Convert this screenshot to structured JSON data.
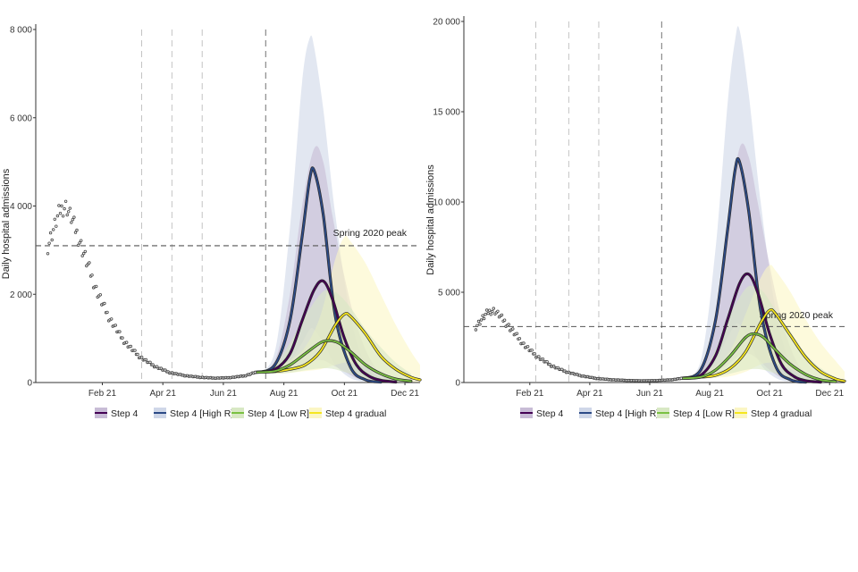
{
  "chart_data": [
    {
      "type": "line",
      "ylabel": "Daily hospital admissions",
      "ylim": [
        0,
        8000
      ],
      "yticks": [
        0,
        2000,
        4000,
        6000,
        8000
      ],
      "ytick_labels": [
        "0",
        "2 000",
        "4 000",
        "6 000",
        "8 000"
      ],
      "xlim_months": [
        11.6,
        24.3
      ],
      "xticks": [
        13.8,
        15.8,
        17.8,
        19.8,
        21.8,
        23.8
      ],
      "xtick_labels": [
        "Feb 21",
        "Apr 21",
        "Jun 21",
        "Aug 21",
        "Oct 21",
        "Dec 21"
      ],
      "vlines_months": [
        15.1,
        16.1,
        17.1,
        19.2
      ],
      "reference": {
        "label": "Spring 2020 peak",
        "value": 3100
      },
      "observed": {
        "name": "Observed",
        "x": [
          12.0,
          12.2,
          12.4,
          12.6,
          12.8,
          13.0,
          13.3,
          13.6,
          14.0,
          14.5,
          15.0,
          15.5,
          16.0,
          16.5,
          17.0,
          17.5,
          18.0,
          18.5,
          18.85
        ],
        "y": [
          3100,
          3500,
          3900,
          4000,
          3700,
          3300,
          2700,
          2100,
          1500,
          950,
          600,
          380,
          230,
          160,
          120,
          100,
          110,
          150,
          230
        ]
      },
      "series": [
        {
          "name": "Step 4",
          "color": "#440154",
          "x": [
            18.85,
            19.5,
            20.0,
            20.4,
            20.8,
            21.1,
            21.4,
            21.8,
            22.2,
            22.6,
            23.0,
            23.5
          ],
          "y": [
            230,
            300,
            650,
            1400,
            2100,
            2300,
            1900,
            1000,
            400,
            150,
            50,
            10
          ],
          "lower": [
            230,
            250,
            300,
            400,
            500,
            500,
            400,
            250,
            100,
            40,
            10,
            0
          ],
          "upper": [
            230,
            500,
            2000,
            4000,
            5300,
            5000,
            3800,
            2400,
            1300,
            600,
            200,
            50
          ]
        },
        {
          "name": "Step 4 [High R]",
          "color": "#2c4a86",
          "x": [
            18.85,
            19.5,
            20.0,
            20.4,
            20.65,
            20.8,
            21.1,
            21.5,
            22.0,
            22.5,
            23.0
          ],
          "y": [
            230,
            400,
            1400,
            3300,
            4600,
            4800,
            3800,
            1500,
            350,
            60,
            10
          ],
          "lower": [
            230,
            300,
            500,
            900,
            1200,
            1200,
            900,
            400,
            100,
            20,
            0
          ],
          "upper": [
            230,
            700,
            3500,
            6800,
            7800,
            7600,
            6200,
            3800,
            1500,
            400,
            100
          ]
        },
        {
          "name": "Step 4 [Low R]",
          "color": "#7ac142",
          "x": [
            18.85,
            19.5,
            20.0,
            20.5,
            21.0,
            21.3,
            21.6,
            22.0,
            22.5,
            23.0,
            23.5,
            24.0
          ],
          "y": [
            230,
            260,
            400,
            650,
            900,
            950,
            900,
            700,
            400,
            200,
            80,
            30
          ],
          "lower": [
            230,
            200,
            220,
            280,
            320,
            320,
            280,
            200,
            100,
            40,
            10,
            0
          ],
          "upper": [
            230,
            400,
            900,
            1500,
            2000,
            2100,
            2000,
            1700,
            1200,
            800,
            450,
            200
          ]
        },
        {
          "name": "Step 4 gradual",
          "color": "#f5e61f",
          "x": [
            18.85,
            19.5,
            20.0,
            20.5,
            21.0,
            21.5,
            21.8,
            22.0,
            22.5,
            23.0,
            23.5,
            24.0,
            24.3
          ],
          "y": [
            230,
            250,
            300,
            400,
            700,
            1300,
            1550,
            1500,
            1100,
            600,
            300,
            120,
            60
          ],
          "lower": [
            230,
            200,
            220,
            260,
            300,
            400,
            450,
            450,
            350,
            200,
            80,
            20,
            5
          ],
          "upper": [
            230,
            350,
            500,
            800,
            1500,
            2800,
            3300,
            3200,
            2700,
            2000,
            1300,
            700,
            400
          ]
        }
      ],
      "legend": "bottom"
    },
    {
      "type": "line",
      "ylabel": "Daily hospital admissions",
      "ylim": [
        0,
        20000
      ],
      "yticks": [
        0,
        5000,
        10000,
        15000,
        20000
      ],
      "ytick_labels": [
        "0",
        "5 000",
        "10 000",
        "15 000",
        "20 000"
      ],
      "xlim_months": [
        11.6,
        24.3
      ],
      "xticks": [
        13.8,
        15.8,
        17.8,
        19.8,
        21.8,
        23.8
      ],
      "xtick_labels": [
        "Feb 21",
        "Apr 21",
        "Jun 21",
        "Aug 21",
        "Oct 21",
        "Dec 21"
      ],
      "vlines_months": [
        14.0,
        15.1,
        16.1,
        18.2
      ],
      "reference": {
        "label": "Spring 2020 peak",
        "value": 3100
      },
      "observed": {
        "name": "Observed",
        "x": [
          12.0,
          12.2,
          12.4,
          12.6,
          12.8,
          13.0,
          13.3,
          13.6,
          14.0,
          14.5,
          15.0,
          15.5,
          16.0,
          16.5,
          17.0,
          17.5,
          18.0,
          18.5,
          18.85
        ],
        "y": [
          3100,
          3500,
          3900,
          4000,
          3700,
          3300,
          2700,
          2100,
          1500,
          950,
          600,
          380,
          230,
          160,
          120,
          100,
          110,
          150,
          230
        ]
      },
      "series": [
        {
          "name": "Step 4",
          "color": "#440154",
          "x": [
            18.85,
            19.5,
            20.0,
            20.4,
            20.8,
            21.1,
            21.4,
            21.8,
            22.2,
            22.6,
            23.0,
            23.5
          ],
          "y": [
            230,
            400,
            1500,
            3500,
            5500,
            6000,
            5000,
            2700,
            1000,
            350,
            100,
            20
          ],
          "lower": [
            230,
            300,
            600,
            1000,
            1500,
            1600,
            1300,
            700,
            250,
            80,
            20,
            0
          ],
          "upper": [
            230,
            700,
            4000,
            9000,
            13000,
            12500,
            10000,
            6500,
            3500,
            1500,
            500,
            100
          ]
        },
        {
          "name": "Step 4 [High R]",
          "color": "#2c4a86",
          "x": [
            18.85,
            19.5,
            20.0,
            20.4,
            20.65,
            20.8,
            21.1,
            21.5,
            22.0,
            22.5,
            23.0
          ],
          "y": [
            230,
            700,
            3500,
            8500,
            11800,
            12200,
            9500,
            4000,
            900,
            150,
            20
          ],
          "lower": [
            230,
            400,
            1200,
            2500,
            3200,
            3200,
            2400,
            1000,
            250,
            40,
            0
          ],
          "upper": [
            230,
            1200,
            7500,
            15500,
            19000,
            19500,
            16000,
            10000,
            4000,
            1000,
            200
          ]
        },
        {
          "name": "Step 4 [Low R]",
          "color": "#7ac142",
          "x": [
            18.85,
            19.5,
            20.0,
            20.5,
            21.0,
            21.3,
            21.6,
            22.0,
            22.5,
            23.0,
            23.5,
            24.0
          ],
          "y": [
            230,
            300,
            700,
            1500,
            2500,
            2700,
            2500,
            1800,
            1000,
            450,
            150,
            50
          ],
          "lower": [
            230,
            220,
            300,
            500,
            700,
            750,
            700,
            500,
            250,
            100,
            30,
            5
          ],
          "upper": [
            230,
            500,
            1800,
            3800,
            5200,
            5300,
            5000,
            4000,
            2800,
            1600,
            800,
            300
          ]
        },
        {
          "name": "Step 4 gradual",
          "color": "#f5e61f",
          "x": [
            18.85,
            19.5,
            20.0,
            20.5,
            21.0,
            21.5,
            21.8,
            22.0,
            22.5,
            23.0,
            23.5,
            24.0,
            24.3
          ],
          "y": [
            230,
            300,
            400,
            800,
            1700,
            3300,
            4000,
            3800,
            2600,
            1400,
            600,
            200,
            80
          ],
          "lower": [
            230,
            220,
            260,
            350,
            600,
            1000,
            1100,
            1050,
            750,
            400,
            150,
            40,
            10
          ],
          "upper": [
            230,
            500,
            900,
            1800,
            3800,
            5800,
            6500,
            6200,
            5000,
            3500,
            2200,
            1200,
            600
          ]
        }
      ],
      "legend": "bottom"
    }
  ]
}
